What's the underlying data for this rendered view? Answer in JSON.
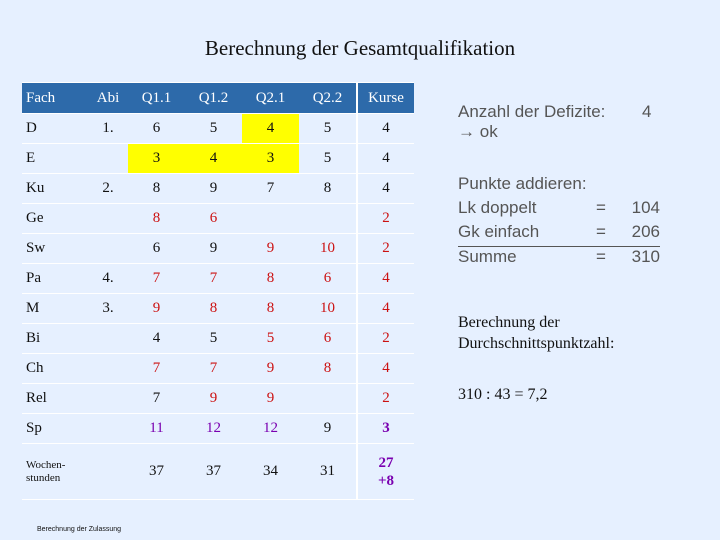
{
  "title": "Berechnung der Gesamtqualifikation",
  "table": {
    "headers": [
      "Fach",
      "Abi",
      "Q1.1",
      "Q1.2",
      "Q2.1",
      "Q2.2",
      "Kurse"
    ],
    "rows": [
      {
        "fach": "D",
        "abi": "1.",
        "q11": "6",
        "q12": "5",
        "q21": "4",
        "q22": "5",
        "kurse": "4"
      },
      {
        "fach": "E",
        "abi": "",
        "q11": "3",
        "q12": "4",
        "q21": "3",
        "q22": "5",
        "kurse": "4"
      },
      {
        "fach": "Ku",
        "abi": "2.",
        "q11": "8",
        "q12": "9",
        "q21": "7",
        "q22": "8",
        "kurse": "4"
      },
      {
        "fach": "Ge",
        "abi": "",
        "q11": "8",
        "q12": "6",
        "q21": "",
        "q22": "",
        "kurse": "2"
      },
      {
        "fach": "Sw",
        "abi": "",
        "q11": "6",
        "q12": "9",
        "q21": "9",
        "q22": "10",
        "kurse": "2"
      },
      {
        "fach": "Pa",
        "abi": "4.",
        "q11": "7",
        "q12": "7",
        "q21": "8",
        "q22": "6",
        "kurse": "4"
      },
      {
        "fach": "M",
        "abi": "3.",
        "q11": "9",
        "q12": "8",
        "q21": "8",
        "q22": "10",
        "kurse": "4"
      },
      {
        "fach": "Bi",
        "abi": "",
        "q11": "4",
        "q12": "5",
        "q21": "5",
        "q22": "6",
        "kurse": "2"
      },
      {
        "fach": "Ch",
        "abi": "",
        "q11": "7",
        "q12": "7",
        "q21": "9",
        "q22": "8",
        "kurse": "4"
      },
      {
        "fach": "Rel",
        "abi": "",
        "q11": "7",
        "q12": "9",
        "q21": "9",
        "q22": "",
        "kurse": "2"
      },
      {
        "fach": "Sp",
        "abi": "",
        "q11": "11",
        "q12": "12",
        "q21": "12",
        "q22": "9",
        "kurse": "3"
      }
    ],
    "wochen": {
      "label_line1": "Wochen-",
      "label_line2": "stunden",
      "q11": "37",
      "q12": "37",
      "q21": "34",
      "q22": "31",
      "kurse_line1": "27",
      "kurse_line2": "+8"
    },
    "colors": {
      "header_bg": "#2d6aaa",
      "highlight": "#ffff00",
      "red_text": "#cc1111",
      "purple_text": "#7a00b0"
    }
  },
  "defizite": {
    "label": "Anzahl der Defizite:",
    "count": "4",
    "arrow": "→",
    "result": "ok"
  },
  "punkte": {
    "heading": "Punkte addieren:",
    "rows": [
      {
        "label": "Lk doppelt",
        "eq": "=",
        "value": "104"
      },
      {
        "label": "Gk einfach",
        "eq": "=",
        "value": "206"
      },
      {
        "label": "Summe",
        "eq": "=",
        "value": "310"
      }
    ]
  },
  "durchschnitt": {
    "line1": "Berechnung der",
    "line2": "Durchschnittspunktzahl:",
    "calc": "310 : 43  = 7,2"
  },
  "footer": "Berechnung der Zulassung"
}
